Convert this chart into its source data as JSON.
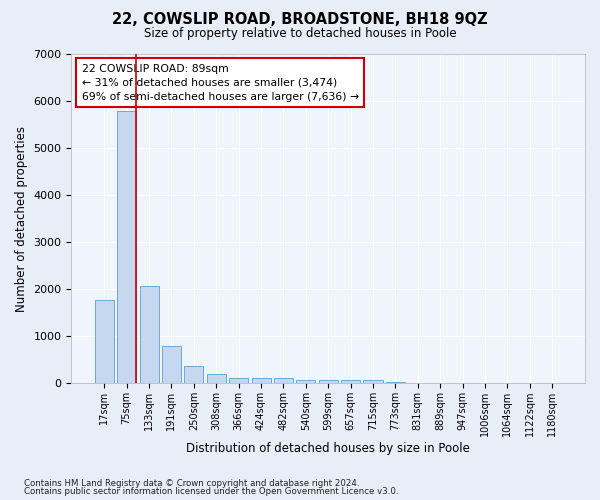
{
  "title1": "22, COWSLIP ROAD, BROADSTONE, BH18 9QZ",
  "title2": "Size of property relative to detached houses in Poole",
  "xlabel": "Distribution of detached houses by size in Poole",
  "ylabel": "Number of detached properties",
  "footnote1": "Contains HM Land Registry data © Crown copyright and database right 2024.",
  "footnote2": "Contains public sector information licensed under the Open Government Licence v3.0.",
  "annotation_line1": "22 COWSLIP ROAD: 89sqm",
  "annotation_line2": "← 31% of detached houses are smaller (3,474)",
  "annotation_line3": "69% of semi-detached houses are larger (7,636) →",
  "bar_labels": [
    "17sqm",
    "75sqm",
    "133sqm",
    "191sqm",
    "250sqm",
    "308sqm",
    "366sqm",
    "424sqm",
    "482sqm",
    "540sqm",
    "599sqm",
    "657sqm",
    "715sqm",
    "773sqm",
    "831sqm",
    "889sqm",
    "947sqm",
    "1006sqm",
    "1064sqm",
    "1122sqm",
    "1180sqm"
  ],
  "bar_values": [
    1780,
    5780,
    2070,
    790,
    360,
    200,
    120,
    110,
    110,
    80,
    60,
    60,
    60,
    20,
    10,
    5,
    5,
    5,
    5,
    5,
    5
  ],
  "bar_color": "#c5d8f0",
  "bar_edge_color": "#6aaad4",
  "vline_color": "#cc0000",
  "vline_x_index": 1.42,
  "background_color": "#e8eef8",
  "plot_bg_color": "#f0f4fc",
  "grid_color": "#ffffff",
  "annotation_box_facecolor": "#ffffff",
  "annotation_box_edgecolor": "#cc0000",
  "ylim": [
    0,
    7000
  ],
  "yticks": [
    0,
    1000,
    2000,
    3000,
    4000,
    5000,
    6000,
    7000
  ]
}
